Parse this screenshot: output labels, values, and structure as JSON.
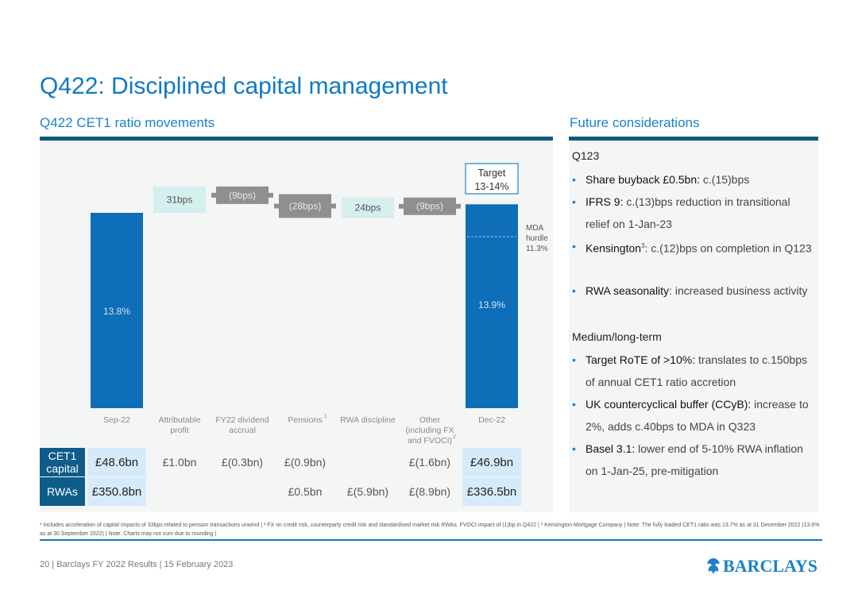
{
  "title": "Q422: Disciplined capital management",
  "left_heading": "Q422 CET1 ratio movements",
  "right_heading": "Future considerations",
  "chart_data": {
    "type": "waterfall",
    "unit": "% CET1 ratio",
    "bars": [
      {
        "category": "Sep-22",
        "kind": "total",
        "value": 13.8,
        "label": "13.8%"
      },
      {
        "category": "Attributable profit",
        "kind": "increase",
        "value": 0.31,
        "label": "31bps"
      },
      {
        "category": "FY22 dividend accrual",
        "kind": "decrease",
        "value": -0.09,
        "label": "(9bps)"
      },
      {
        "category": "Pensions",
        "sup": "1",
        "kind": "decrease",
        "value": -0.28,
        "label": "(28bps)"
      },
      {
        "category": "RWA discipline",
        "kind": "increase",
        "value": 0.24,
        "label": "24bps"
      },
      {
        "category": "Other (including FX and FVOCI)",
        "sup": "2",
        "kind": "decrease",
        "value": -0.09,
        "label": "(9bps)"
      },
      {
        "category": "Dec-22",
        "kind": "total",
        "value": 13.9,
        "label": "13.9%"
      }
    ],
    "target": {
      "label": "Target",
      "range": "13-14%"
    },
    "mda_hurdle": {
      "value": 11.3,
      "label_lines": [
        "MDA",
        "hurdle",
        "11.3%"
      ]
    }
  },
  "table": {
    "rows": [
      {
        "label": "CET1 capital",
        "cells": [
          "£48.6bn",
          "£1.0bn",
          "£(0.3bn)",
          "£(0.9bn)",
          "",
          "£(1.6bn)",
          "£46.9bn"
        ]
      },
      {
        "label": "RWAs",
        "cells": [
          "£350.8bn",
          "",
          "",
          "£0.5bn",
          "£(5.9bn)",
          "£(8.9bn)",
          "£336.5bn"
        ]
      }
    ]
  },
  "considerations": {
    "q123_heading": "Q123",
    "q123_items": [
      {
        "bold": "Share buyback £0.5bn:",
        "text": " c.(15)bps"
      },
      {
        "bold": "IFRS 9:",
        "text": " c.(13)bps reduction in transitional relief on 1-Jan-23"
      },
      {
        "bold": "Kensington",
        "sup": "3",
        "text": ": c.(12)bps on completion in Q123"
      },
      {
        "bold": "RWA seasonality",
        "text": ": increased business activity"
      }
    ],
    "medium_heading": "Medium/long-term",
    "medium_items": [
      {
        "bold": "Target RoTE of >10%:",
        "text": " translates to c.150bps of annual CET1 ratio accretion"
      },
      {
        "bold": "UK countercyclical buffer (CCyB):",
        "text": " increase to 2%, adds c.40bps to MDA in Q323"
      },
      {
        "bold": "Basel 3.1:",
        "text": " lower end of 5-10% RWA inflation on 1-Jan-25, pre-mitigation"
      }
    ]
  },
  "footnote": "¹ Includes acceleration of capital impacts of 33bps related to pension transactions unwind | ² FX on credit risk, counterparty credit risk and standardised market risk RWAs. FVOCI impact of (1)bp in Q422 | ³ Kensington Mortgage Company | Note: The fully loaded CET1 ratio was 13.7% as at 31 December 2022 (13.6% as at 30 September 2022) | Note: Charts may not sum due to rounding |",
  "footer": "20 | Barclays FY 2022 Results | 15 February 2023",
  "logo_text": "BARCLAYS",
  "colors": {
    "brand_blue": "#1d82c6",
    "bar_blue": "#0e6eb8",
    "increase_fill": "#d5eeee",
    "decrease_fill": "#8f8f8f",
    "panel_bg": "#f4f5f5",
    "table_label_bg": "#0e5c8a",
    "highlight_cell": "#d6ebfa"
  }
}
